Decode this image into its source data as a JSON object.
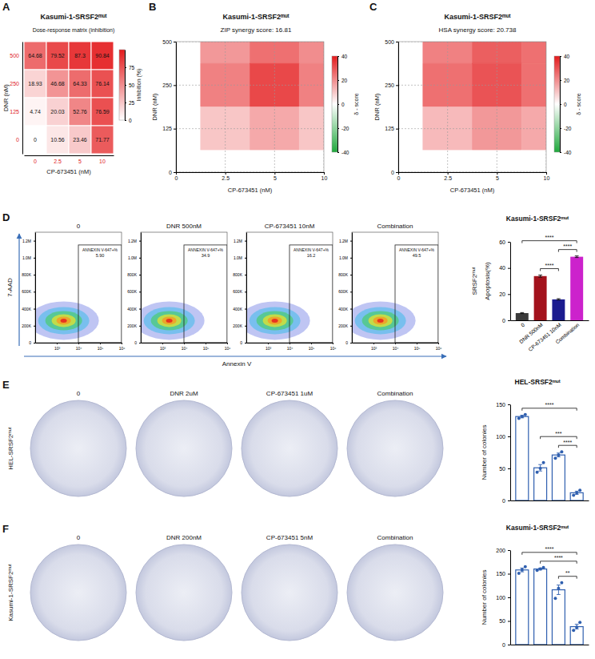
{
  "chart_data": [
    {
      "type": "heatmap",
      "label": "A",
      "title": "Kasumi-1-SRSF2ᵐᵘᵗ",
      "subtitle": "Dose-response matrix (inhibition)",
      "x_label": "CP-673451 (nM)",
      "y_label": "DNR (nM)",
      "categories": [
        "0",
        "2.5",
        "5",
        "10"
      ],
      "rows": [
        "500",
        "250",
        "125",
        "0"
      ],
      "cells": [
        [
          64.68,
          79.52,
          87.3,
          90.84
        ],
        [
          18.93,
          46.68,
          64.33,
          76.14
        ],
        [
          4.74,
          20.03,
          52.76,
          76.59
        ],
        [
          0,
          10.56,
          23.46,
          71.77
        ]
      ],
      "data_labels": true,
      "colorbar": {
        "title": "Inhibition (%)",
        "range": [
          0,
          100
        ],
        "ticks": [
          0,
          25,
          50,
          75
        ],
        "colors": [
          "#ffffff",
          "#e31a1c"
        ]
      }
    },
    {
      "type": "heatmap",
      "label": "B",
      "title": "Kasumi-1-SRSF2ᵐᵘᵗ",
      "subtitle": "ZIP synergy score: 16.81",
      "x_label": "CP-673451 (nM)",
      "y_label": "DNR (nM)",
      "categories": [
        "0",
        "2.5",
        "5",
        "10"
      ],
      "rows": [
        "500",
        "250",
        "125",
        "0"
      ],
      "cells": [
        [
          0,
          18,
          25,
          20
        ],
        [
          0,
          22,
          32,
          22
        ],
        [
          0,
          10,
          15,
          10
        ],
        [
          0,
          0,
          0,
          0
        ]
      ],
      "grid": true,
      "data_labels": false,
      "colorbar": {
        "title": "δ - score",
        "range": [
          -40,
          40
        ],
        "ticks": [
          -40,
          -20,
          0,
          20,
          40
        ],
        "colors": [
          "#1fa83c",
          "#ffffff",
          "#e31a1c"
        ]
      }
    },
    {
      "type": "heatmap",
      "label": "C",
      "title": "Kasumi-1-SRSF2ᵐᵘᵗ",
      "subtitle": "HSA synergy score: 20.738",
      "x_label": "CP-673451 (nM)",
      "y_label": "DNR (nM)",
      "categories": [
        "0",
        "2.5",
        "5",
        "10"
      ],
      "rows": [
        "500",
        "250",
        "125",
        "0"
      ],
      "cells": [
        [
          0,
          22,
          28,
          25
        ],
        [
          0,
          25,
          30,
          25
        ],
        [
          0,
          12,
          18,
          15
        ],
        [
          0,
          0,
          0,
          0
        ]
      ],
      "grid": true,
      "data_labels": false,
      "colorbar": {
        "title": "δ - score",
        "range": [
          -40,
          40
        ],
        "ticks": [
          -40,
          -20,
          0,
          20,
          40
        ],
        "colors": [
          "#1fa83c",
          "#ffffff",
          "#e31a1c"
        ]
      }
    },
    {
      "type": "flow_gate",
      "label": "D",
      "titles": [
        "0",
        "DNR 500nM",
        "CP-673451 10nM",
        "Combination"
      ],
      "gate_label": "ANNEXIN V-647+%",
      "values": [
        5.9,
        34.9,
        16.2,
        49.5
      ],
      "value_labels": [
        "5.90",
        "34.9",
        "16.2",
        "49.5"
      ],
      "gate": {
        "x": [
          10000,
          1000000
        ],
        "y": [
          0,
          1150000
        ]
      },
      "x_label": "Annexin V",
      "y_label": "7-AAD",
      "log": "x",
      "xlim": [
        100,
        1000000
      ],
      "xticks": [
        {
          "value": 1000,
          "label": "10³"
        },
        {
          "value": 10000,
          "label": "10⁴"
        },
        {
          "value": 100000,
          "label": "10⁵"
        },
        {
          "value": 1000000,
          "label": "10⁶"
        }
      ],
      "ylim": [
        0,
        1300000
      ],
      "yticks": [
        0,
        {
          "value": 200000,
          "label": "200K"
        },
        {
          "value": 400000,
          "label": "400K"
        },
        {
          "value": 600000,
          "label": "600K"
        },
        {
          "value": 800000,
          "label": "800K"
        },
        {
          "value": 1000000,
          "label": "1.0M"
        },
        {
          "value": 1200000,
          "label": "1.2M"
        }
      ]
    },
    {
      "type": "bar",
      "title": "Kasumi-1-SRSF2ᵐᵘᵗ",
      "y_label": "Apoptosis(%)",
      "annotations": [
        "SRSF2ᵐᵘᵗ"
      ],
      "categories": [
        "0",
        "DNR 500nM",
        "CP-673451 10nM",
        "Combination"
      ],
      "values": [
        5.5,
        33.8,
        16,
        48.6
      ],
      "errors": [
        0.4,
        0.8,
        0.5,
        0.6
      ],
      "colors": [
        "#3b3b3b",
        "#a3121c",
        "#1b1b8f",
        "#cc22cc"
      ],
      "ylim": [
        0,
        60
      ],
      "yticks": [
        0,
        20,
        40,
        60
      ],
      "comparisons": [
        {
          "from": 0,
          "to": 3,
          "label": "****"
        },
        {
          "from": 2,
          "to": 3,
          "label": "****"
        },
        {
          "from": 1,
          "to": 2,
          "label": "****"
        }
      ]
    },
    {
      "type": "image_row",
      "label": "E",
      "row_label": "HEL-SRSF2ᵐᵘᵗ",
      "titles": [
        "0",
        "DNR 2uM",
        "CP-673451 1uM",
        "Combination"
      ]
    },
    {
      "type": "bar",
      "title": "HEL-SRSF2ᵐᵘᵗ",
      "y_label": "Number of colonies",
      "categories": [
        null,
        null,
        null,
        null
      ],
      "values": [
        131,
        51,
        71,
        12
      ],
      "errors": [
        2,
        5,
        3,
        2.5
      ],
      "points": [
        [
          128,
          131,
          134
        ],
        [
          44,
          50,
          59
        ],
        [
          66,
          71,
          76
        ],
        [
          8,
          12,
          16
        ]
      ],
      "color": "#2f5faf",
      "ylim": [
        0,
        150
      ],
      "yticks": [
        0,
        50,
        100,
        150
      ],
      "comparisons": [
        {
          "from": 0,
          "to": 3,
          "label": "****"
        },
        {
          "from": 1,
          "to": 3,
          "label": "***"
        },
        {
          "from": 2,
          "to": 3,
          "label": "****"
        }
      ]
    },
    {
      "type": "image_row",
      "label": "F",
      "row_label": "Kasumi-1-SRSF2ᵐᵘᵗ",
      "titles": [
        "0",
        "DNR 200nM",
        "CP-673451 5nM",
        "Combination"
      ]
    },
    {
      "type": "bar",
      "title": "Kasumi-1-SRSF2ᵐᵘᵗ",
      "y_label": "Number of colonies",
      "categories": [
        null,
        null,
        null,
        null
      ],
      "values": [
        158,
        160,
        116,
        38
      ],
      "errors": [
        4,
        2,
        10,
        5
      ],
      "points": [
        [
          151,
          158,
          165
        ],
        [
          157,
          160,
          163
        ],
        [
          98,
          119,
          131
        ],
        [
          30,
          37,
          47
        ]
      ],
      "color": "#2f5faf",
      "ylim": [
        0,
        200
      ],
      "yticks": [
        0,
        50,
        100,
        150,
        200
      ],
      "comparisons": [
        {
          "from": 0,
          "to": 3,
          "label": "****"
        },
        {
          "from": 1,
          "to": 3,
          "label": "****"
        },
        {
          "from": 2,
          "to": 3,
          "label": "**"
        }
      ]
    }
  ]
}
